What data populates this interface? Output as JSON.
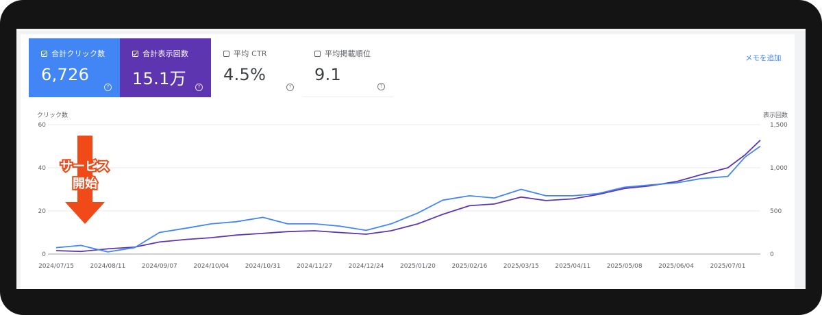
{
  "tiles": [
    {
      "label": "合計クリック数",
      "value": "6,726",
      "checked": true,
      "color": "#4285f4"
    },
    {
      "label": "合計表示回数",
      "value": "15.1万",
      "checked": true,
      "color": "#5e35b1"
    },
    {
      "label": "平均 CTR",
      "value": "4.5%",
      "checked": false
    },
    {
      "label": "平均掲載順位",
      "value": "9.1",
      "checked": false
    }
  ],
  "memo_label": "メモを追加",
  "help_glyph": "?",
  "annotation": {
    "line1": "サービス",
    "line2": "開始",
    "arrow_color": "#f04a18"
  },
  "chart_data": {
    "type": "line",
    "xlabel": "",
    "left_axis_label": "クリック数",
    "right_axis_label": "表示回数",
    "left_ticks": [
      "0",
      "20",
      "40",
      "60"
    ],
    "right_ticks": [
      "0",
      "500",
      "1,000",
      "1,500"
    ],
    "ylim_left": [
      0,
      60
    ],
    "ylim_right": [
      0,
      1500
    ],
    "x_ticks": [
      "2024/07/15",
      "2024/08/11",
      "2024/09/07",
      "2024/10/04",
      "2024/10/31",
      "2024/11/27",
      "2024/12/24",
      "2025/01/20",
      "2025/02/16",
      "2025/03/15",
      "2025/04/11",
      "2025/05/08",
      "2025/06/04",
      "2025/07/01"
    ],
    "x_start": "2024/07/15",
    "x_end": "2025/07/18",
    "grid": true,
    "series": [
      {
        "name": "合計クリック数",
        "axis": "left",
        "color": "#4285f4",
        "points": [
          [
            "2024/07/15",
            3
          ],
          [
            "2024/07/28",
            4
          ],
          [
            "2024/08/11",
            1
          ],
          [
            "2024/08/25",
            3
          ],
          [
            "2024/09/07",
            10
          ],
          [
            "2024/09/21",
            12
          ],
          [
            "2024/10/04",
            14
          ],
          [
            "2024/10/17",
            15
          ],
          [
            "2024/10/31",
            17
          ],
          [
            "2024/11/13",
            14
          ],
          [
            "2024/11/27",
            14
          ],
          [
            "2024/12/10",
            13
          ],
          [
            "2024/12/24",
            11
          ],
          [
            "2025/01/06",
            14
          ],
          [
            "2025/01/20",
            19
          ],
          [
            "2025/02/02",
            25
          ],
          [
            "2025/02/16",
            27
          ],
          [
            "2025/03/01",
            26
          ],
          [
            "2025/03/15",
            30
          ],
          [
            "2025/03/28",
            27
          ],
          [
            "2025/04/11",
            27
          ],
          [
            "2025/04/24",
            28
          ],
          [
            "2025/05/08",
            31
          ],
          [
            "2025/05/21",
            32
          ],
          [
            "2025/06/04",
            33
          ],
          [
            "2025/06/17",
            35
          ],
          [
            "2025/07/01",
            36
          ],
          [
            "2025/07/10",
            45
          ],
          [
            "2025/07/18",
            50
          ]
        ]
      },
      {
        "name": "合計表示回数",
        "axis": "right",
        "color": "#5e35b1",
        "points": [
          [
            "2024/07/15",
            40
          ],
          [
            "2024/07/28",
            30
          ],
          [
            "2024/08/11",
            60
          ],
          [
            "2024/08/25",
            80
          ],
          [
            "2024/09/07",
            140
          ],
          [
            "2024/09/21",
            170
          ],
          [
            "2024/10/04",
            190
          ],
          [
            "2024/10/17",
            220
          ],
          [
            "2024/10/31",
            240
          ],
          [
            "2024/11/13",
            260
          ],
          [
            "2024/11/27",
            270
          ],
          [
            "2024/12/10",
            250
          ],
          [
            "2024/12/24",
            230
          ],
          [
            "2025/01/06",
            270
          ],
          [
            "2025/01/20",
            350
          ],
          [
            "2025/02/02",
            460
          ],
          [
            "2025/02/16",
            560
          ],
          [
            "2025/03/01",
            580
          ],
          [
            "2025/03/15",
            660
          ],
          [
            "2025/03/28",
            620
          ],
          [
            "2025/04/11",
            640
          ],
          [
            "2025/04/24",
            690
          ],
          [
            "2025/05/08",
            760
          ],
          [
            "2025/05/21",
            790
          ],
          [
            "2025/06/04",
            840
          ],
          [
            "2025/06/17",
            920
          ],
          [
            "2025/07/01",
            1000
          ],
          [
            "2025/07/10",
            1150
          ],
          [
            "2025/07/18",
            1320
          ]
        ]
      }
    ]
  }
}
